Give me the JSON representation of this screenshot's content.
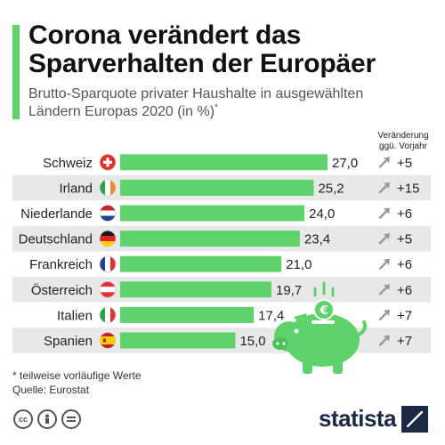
{
  "title_line1": "Corona verändert das",
  "title_line2": "Sparverhalten der Europäer",
  "subtitle": "Brutto-Sparquote privater Haushalte in ausgewählten Ländern Europas 2020 (in %)",
  "subtitle_mark": "*",
  "change_header_line1": "Veränderung",
  "change_header_line2": "ggü. Vorjahr",
  "footnote": "* teilweise vorläufige Werte",
  "source": "Quelle: Eurostat",
  "brand": "statista",
  "license_icons": [
    "cc-icon",
    "person-icon",
    "equals-icon"
  ],
  "colors": {
    "bar": "#5fd36b",
    "band": "#e8e8e8",
    "arrow": "#999999",
    "accent": "#5fd36b",
    "piggy": "#5fd36b"
  },
  "chart_data": {
    "type": "bar",
    "orientation": "horizontal",
    "categories": [
      "Schweiz",
      "Irland",
      "Niederlande",
      "Deutschland",
      "Frankreich",
      "Österreich",
      "Italien",
      "Spanien"
    ],
    "value_labels": [
      "27,0",
      "25,2",
      "24,0",
      "23,4",
      "21,0",
      "19,7",
      "17,4",
      "15,0"
    ],
    "values": [
      27.0,
      25.2,
      24.0,
      23.4,
      21.0,
      19.7,
      17.4,
      15.0
    ],
    "change_labels": [
      "+5",
      "+15",
      "+6",
      "+5",
      "+6",
      "+6",
      "+7",
      "+7"
    ],
    "change_values": [
      5,
      15,
      6,
      5,
      6,
      6,
      7,
      7
    ],
    "flags": [
      "flag-switzerland-icon",
      "flag-ireland-icon",
      "flag-netherlands-icon",
      "flag-germany-icon",
      "flag-france-icon",
      "flag-austria-icon",
      "flag-italy-icon",
      "flag-spain-icon"
    ],
    "unit": "%",
    "xlim": [
      0,
      27.0
    ],
    "grid": false,
    "legend": "none"
  }
}
